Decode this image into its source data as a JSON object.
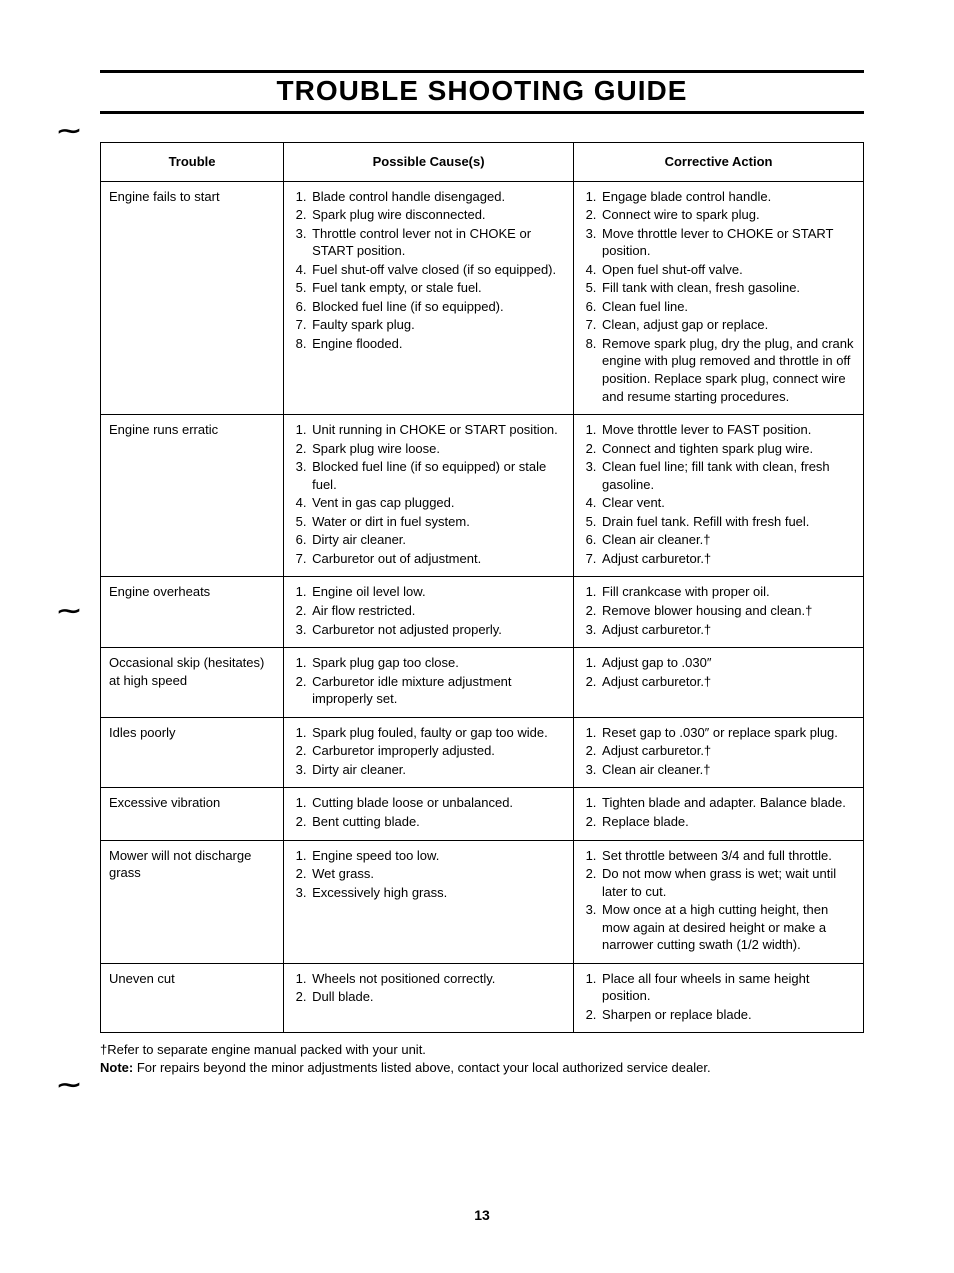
{
  "title": "TROUBLE SHOOTING GUIDE",
  "headers": {
    "c1": "Trouble",
    "c2": "Possible Cause(s)",
    "c3": "Corrective Action"
  },
  "rows": [
    {
      "trouble": "Engine fails to start",
      "causes": [
        "Blade control handle disengaged.",
        "Spark plug wire disconnected.",
        "Throttle control lever not in CHOKE or START position.",
        "Fuel shut-off valve closed (if so equipped).",
        "Fuel tank empty, or stale fuel.",
        "Blocked fuel line (if so equipped).",
        "Faulty spark plug.",
        "Engine flooded."
      ],
      "actions": [
        "Engage blade control handle.",
        "Connect wire to spark plug.",
        "Move throttle lever to CHOKE or START position.",
        "Open fuel shut-off valve.",
        "Fill tank with clean, fresh gasoline.",
        "Clean fuel line.",
        "Clean, adjust gap or replace.",
        "Remove spark plug, dry the plug, and crank engine with plug removed and throttle in off position. Replace spark plug, connect wire and resume starting procedures."
      ]
    },
    {
      "trouble": "Engine runs erratic",
      "causes": [
        "Unit running in CHOKE or START position.",
        "Spark plug wire loose.",
        "Blocked fuel line (if so equipped) or stale fuel.",
        "Vent in gas cap plugged.",
        "Water or dirt in fuel system.",
        "Dirty air cleaner.",
        "Carburetor out of adjustment."
      ],
      "actions": [
        "Move throttle lever to FAST position.",
        "Connect and tighten spark plug wire.",
        "Clean fuel line; fill tank with clean, fresh gasoline.",
        "Clear vent.",
        "Drain fuel tank. Refill with fresh fuel.",
        "Clean air cleaner.†",
        "Adjust carburetor.†"
      ]
    },
    {
      "trouble": "Engine overheats",
      "causes": [
        "Engine oil level low.",
        "Air flow restricted.",
        "Carburetor not adjusted properly."
      ],
      "actions": [
        "Fill crankcase with proper oil.",
        "Remove blower housing and clean.†",
        "Adjust carburetor.†"
      ]
    },
    {
      "trouble": "Occasional skip (hesitates) at high speed",
      "causes": [
        "Spark plug gap too close.",
        "Carburetor idle mixture adjustment improperly set."
      ],
      "actions": [
        "Adjust gap to .030″",
        "Adjust carburetor.†"
      ]
    },
    {
      "trouble": "Idles poorly",
      "causes": [
        "Spark plug fouled, faulty or gap too wide.",
        "Carburetor improperly adjusted.",
        "Dirty air cleaner."
      ],
      "actions": [
        "Reset gap to .030″ or replace spark plug.",
        "Adjust carburetor.†",
        "Clean air cleaner.†"
      ]
    },
    {
      "trouble": "Excessive vibration",
      "causes": [
        "Cutting blade loose or unbalanced.",
        "Bent cutting blade."
      ],
      "actions": [
        "Tighten blade and adapter. Balance blade.",
        "Replace blade."
      ]
    },
    {
      "trouble": "Mower will not discharge grass",
      "causes": [
        "Engine speed too low.",
        "Wet grass.",
        "Excessively high grass."
      ],
      "actions": [
        "Set throttle between 3/4 and full throttle.",
        "Do not mow when grass is wet; wait until later to cut.",
        "Mow once at a high cutting height, then mow again at desired height or make a narrower cutting swath (1/2 width)."
      ]
    },
    {
      "trouble": "Uneven cut",
      "causes": [
        "Wheels not positioned correctly.",
        "Dull blade."
      ],
      "actions": [
        "Place all four wheels in same height position.",
        "Sharpen or replace blade."
      ]
    }
  ],
  "footnote_dagger": "†Refer to separate engine manual packed with your unit.",
  "footnote_note_label": "Note:",
  "footnote_note_text": " For repairs beyond the minor adjustments listed above, contact your local authorized service dealer.",
  "page_number": "13"
}
